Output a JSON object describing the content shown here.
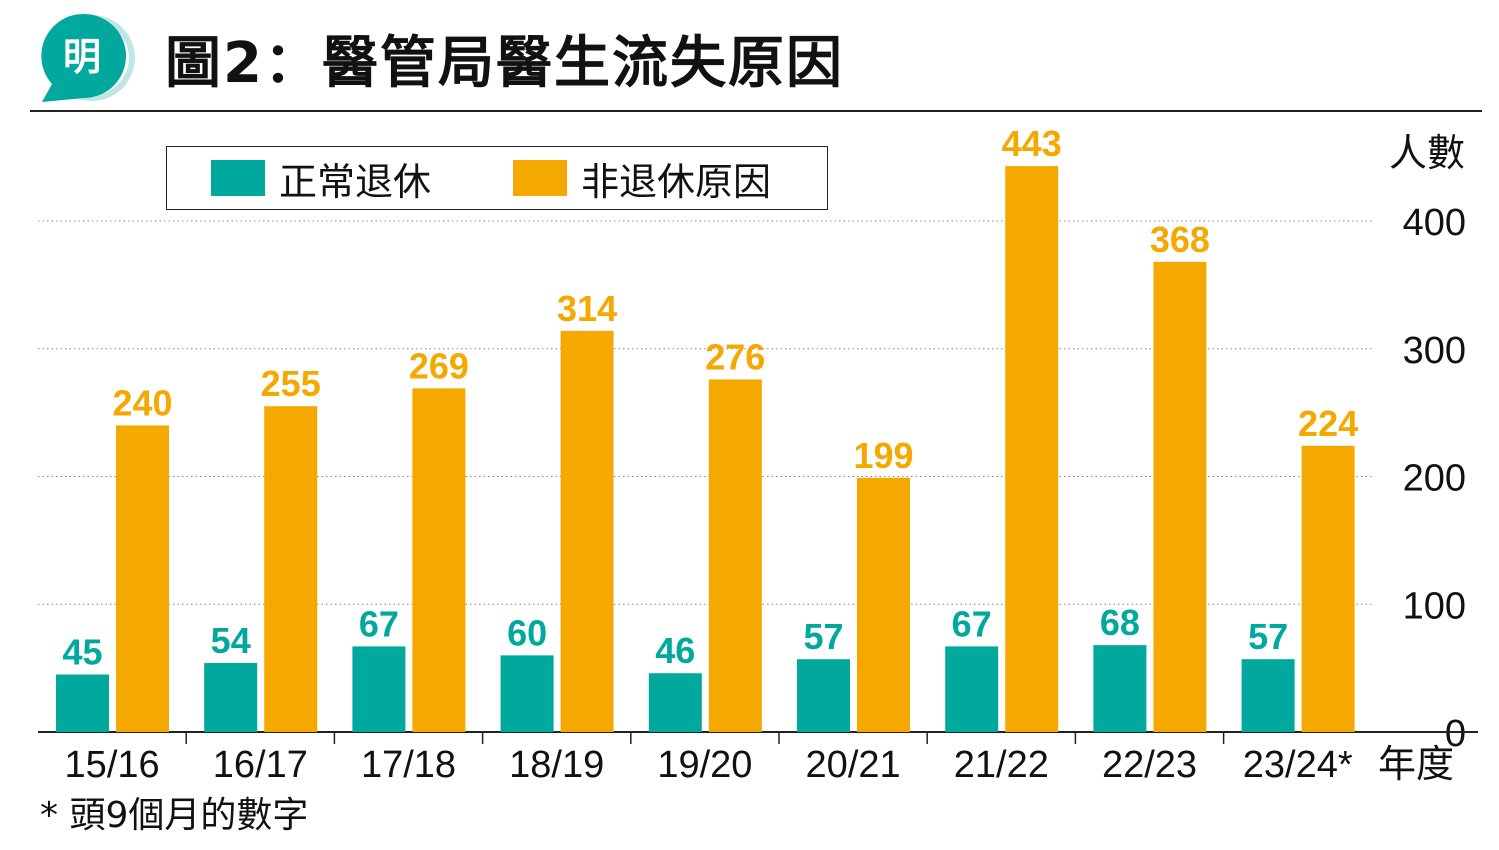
{
  "header": {
    "logo_text": "明",
    "title": "圖2：醫管局醫生流失原因"
  },
  "legend": [
    {
      "label": "正常退休",
      "color": "#00a89d"
    },
    {
      "label": "非退休原因",
      "color": "#f5a800"
    }
  ],
  "chart_data": {
    "type": "bar",
    "title": "圖2：醫管局醫生流失原因",
    "categories": [
      "15/16",
      "16/17",
      "17/18",
      "18/19",
      "19/20",
      "20/21",
      "21/22",
      "22/23",
      "23/24*"
    ],
    "series": [
      {
        "name": "正常退休",
        "values": [
          45,
          54,
          67,
          60,
          46,
          57,
          67,
          68,
          57
        ],
        "color": "#00a89d"
      },
      {
        "name": "非退休原因",
        "values": [
          240,
          255,
          269,
          314,
          276,
          199,
          443,
          368,
          224
        ],
        "color": "#f5a800"
      }
    ],
    "ylabel": "人數",
    "xlabel": "年度",
    "ylim": [
      0,
      443
    ],
    "yticks": [
      0,
      100,
      200,
      300,
      400
    ],
    "grid": true,
    "legend_position": "top-left",
    "footnote": "* 頭9個月的數字"
  }
}
